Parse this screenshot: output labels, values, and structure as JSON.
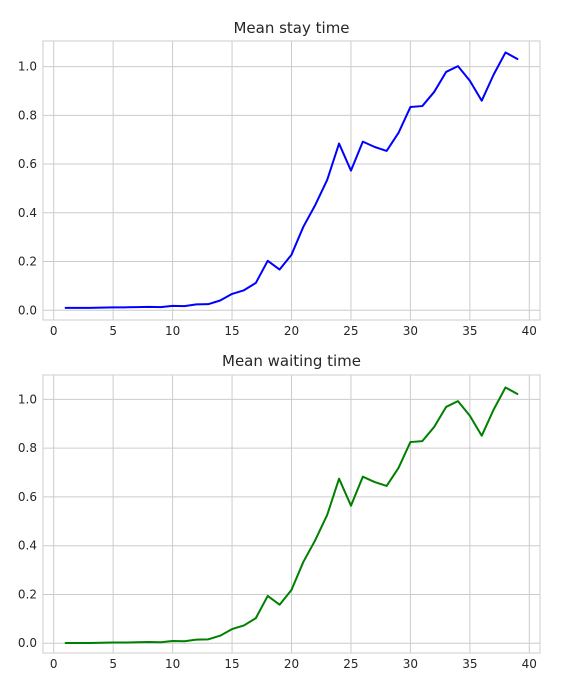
{
  "chart_data": [
    {
      "type": "line",
      "title": "Mean stay time",
      "xlabel": "",
      "ylabel": "",
      "xlim": [
        -0.9,
        40.9
      ],
      "ylim": [
        -0.04,
        1.105
      ],
      "xticks": [
        0,
        5,
        10,
        15,
        20,
        25,
        30,
        35,
        40
      ],
      "yticks": [
        0.0,
        0.2,
        0.4,
        0.6,
        0.8,
        1.0
      ],
      "xtick_labels": [
        "0",
        "5",
        "10",
        "15",
        "20",
        "25",
        "30",
        "35",
        "40"
      ],
      "ytick_labels": [
        "0.0",
        "0.2",
        "0.4",
        "0.6",
        "0.8",
        "1.0"
      ],
      "grid": true,
      "color": "#0000ff",
      "x": [
        1,
        2,
        3,
        4,
        5,
        6,
        7,
        8,
        9,
        10,
        11,
        12,
        13,
        14,
        15,
        16,
        17,
        18,
        19,
        20,
        21,
        22,
        23,
        24,
        25,
        26,
        27,
        28,
        29,
        30,
        31,
        32,
        33,
        34,
        35,
        36,
        37,
        38,
        39
      ],
      "y": [
        0.01,
        0.01,
        0.01,
        0.011,
        0.012,
        0.012,
        0.013,
        0.014,
        0.013,
        0.018,
        0.017,
        0.024,
        0.025,
        0.04,
        0.067,
        0.082,
        0.112,
        0.203,
        0.167,
        0.228,
        0.343,
        0.432,
        0.535,
        0.684,
        0.573,
        0.692,
        0.67,
        0.654,
        0.728,
        0.834,
        0.838,
        0.896,
        0.978,
        1.002,
        0.942,
        0.86,
        0.967,
        1.058,
        1.031
      ]
    },
    {
      "type": "line",
      "title": "Mean waiting time",
      "xlabel": "",
      "ylabel": "",
      "xlim": [
        -0.9,
        40.9
      ],
      "ylim": [
        -0.04,
        1.1
      ],
      "xticks": [
        0,
        5,
        10,
        15,
        20,
        25,
        30,
        35,
        40
      ],
      "yticks": [
        0.0,
        0.2,
        0.4,
        0.6,
        0.8,
        1.0
      ],
      "xtick_labels": [
        "0",
        "5",
        "10",
        "15",
        "20",
        "25",
        "30",
        "35",
        "40"
      ],
      "ytick_labels": [
        "0.0",
        "0.2",
        "0.4",
        "0.6",
        "0.8",
        "1.0"
      ],
      "grid": true,
      "color": "#008000",
      "x": [
        1,
        2,
        3,
        4,
        5,
        6,
        7,
        8,
        9,
        10,
        11,
        12,
        13,
        14,
        15,
        16,
        17,
        18,
        19,
        20,
        21,
        22,
        23,
        24,
        25,
        26,
        27,
        28,
        29,
        30,
        31,
        32,
        33,
        34,
        35,
        36,
        37,
        38,
        39
      ],
      "y": [
        0.001,
        0.001,
        0.001,
        0.002,
        0.003,
        0.003,
        0.004,
        0.005,
        0.004,
        0.009,
        0.008,
        0.015,
        0.016,
        0.031,
        0.058,
        0.073,
        0.103,
        0.194,
        0.158,
        0.219,
        0.334,
        0.423,
        0.526,
        0.675,
        0.564,
        0.683,
        0.661,
        0.645,
        0.719,
        0.825,
        0.829,
        0.887,
        0.969,
        0.993,
        0.933,
        0.851,
        0.958,
        1.049,
        1.022
      ]
    }
  ]
}
